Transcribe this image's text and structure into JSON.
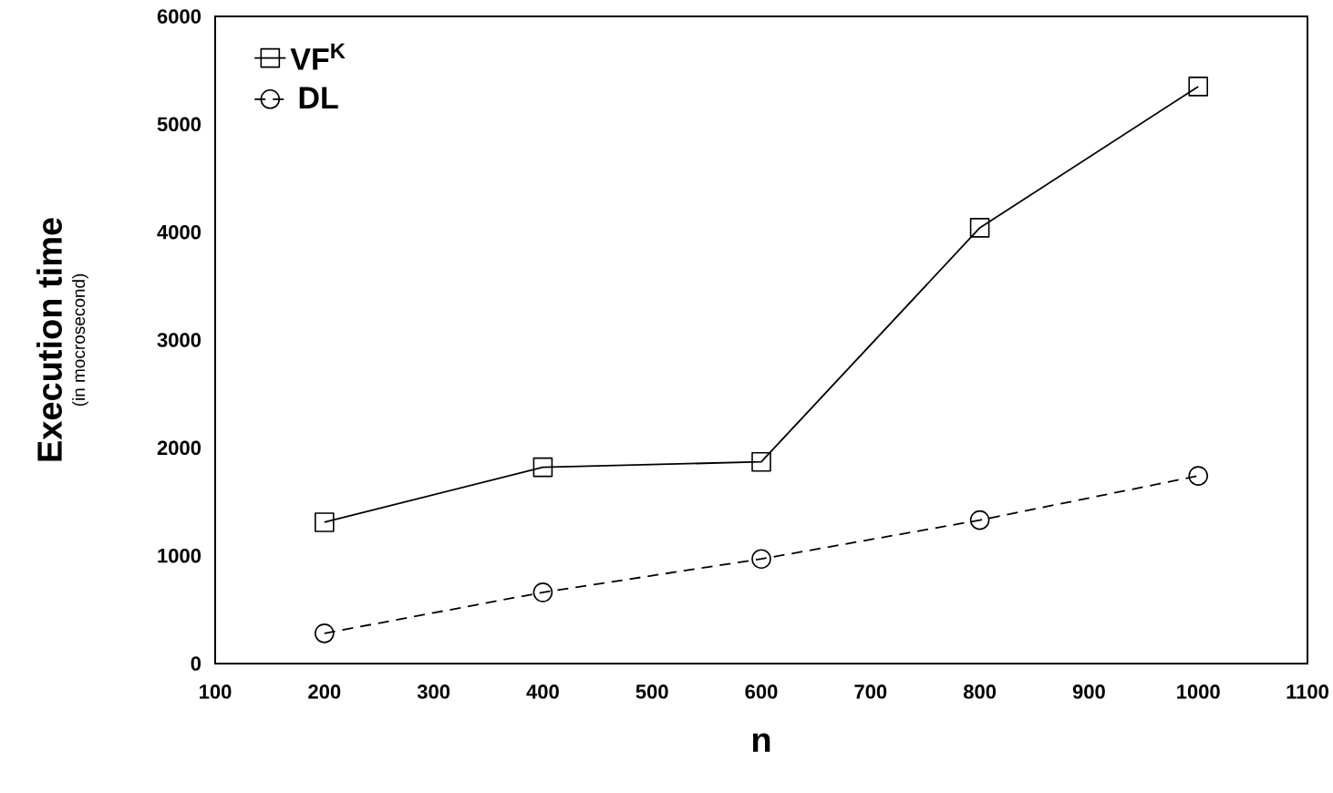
{
  "chart_data": {
    "type": "line",
    "xlabel": "n",
    "ylabel": "Execution time",
    "annotations": [
      "(in mocrosecond)"
    ],
    "x": [
      200,
      400,
      600,
      800,
      1000
    ],
    "series": [
      {
        "name": "VF$^{K}$",
        "color": "#000000",
        "marker": "square",
        "line_style": "solid",
        "values": [
          1310,
          1820,
          1870,
          4040,
          5350
        ]
      },
      {
        "name": "DL",
        "color": "#000000",
        "marker": "circle",
        "line_style": "dashed",
        "values": [
          280,
          660,
          970,
          1330,
          1740
        ]
      }
    ],
    "xlim": [
      100,
      1100
    ],
    "xticks": [
      100,
      200,
      300,
      400,
      500,
      600,
      700,
      800,
      900,
      1000,
      1100
    ],
    "ylim": [
      0,
      6000
    ],
    "yticks": [
      0,
      1000,
      2000,
      3000,
      4000,
      5000,
      6000
    ],
    "grid": false,
    "legend": "top left"
  }
}
